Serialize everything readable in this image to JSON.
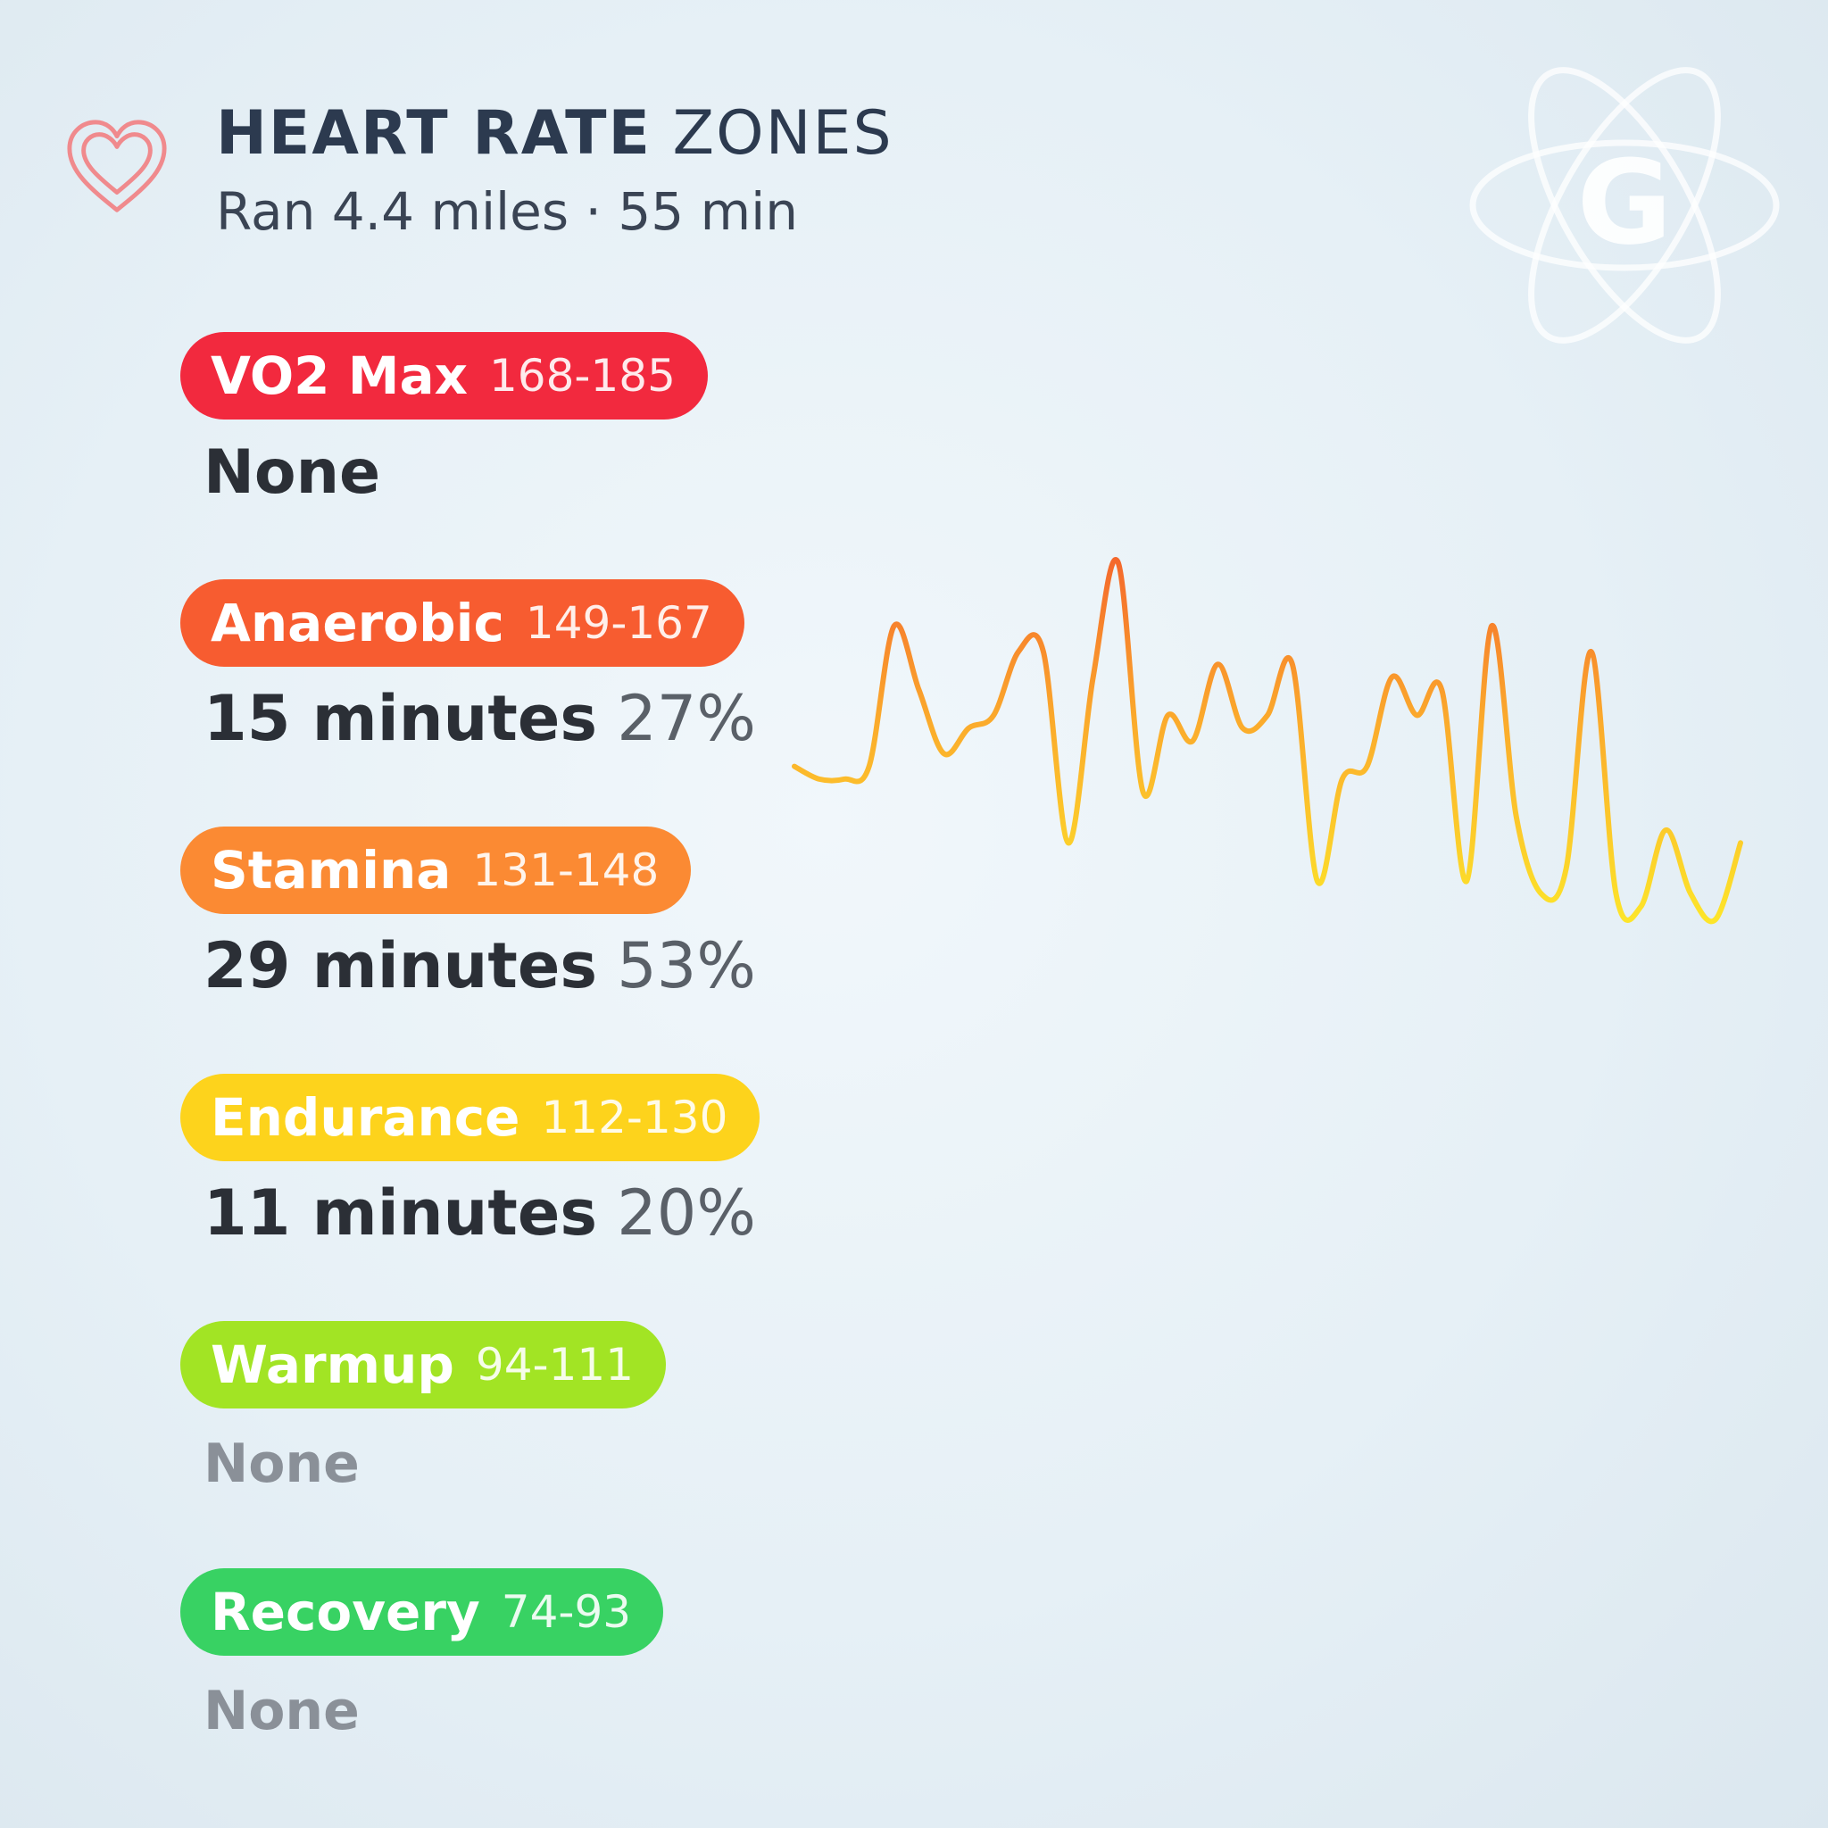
{
  "header": {
    "title_bold": "HEART RATE",
    "title_light": "ZONES",
    "subtitle": "Ran 4.4 miles · 55 min",
    "icon": "heart-icon",
    "logo_letter": "G"
  },
  "colors": {
    "vo2": "#f2293e",
    "anaerobic": "#f75c30",
    "stamina": "#fb8a33",
    "endurance": "#fdd31c",
    "warmup": "#a2e424",
    "recovery": "#38d263",
    "chart_top": "#f4682c",
    "chart_bottom": "#fde52a"
  },
  "zones": [
    {
      "name": "VO2 Max",
      "range": "168-185",
      "minutes": "",
      "percent": "",
      "none": "None"
    },
    {
      "name": "Anaerobic",
      "range": "149-167",
      "minutes": "15 minutes",
      "percent": "27%",
      "none": ""
    },
    {
      "name": "Stamina",
      "range": "131-148",
      "minutes": "29 minutes",
      "percent": "53%",
      "none": ""
    },
    {
      "name": "Endurance",
      "range": "112-130",
      "minutes": "11 minutes",
      "percent": "20%",
      "none": ""
    },
    {
      "name": "Warmup",
      "range": "94-111",
      "minutes": "",
      "percent": "",
      "none": "None"
    },
    {
      "name": "Recovery",
      "range": "74-93",
      "minutes": "",
      "percent": "",
      "none": "None"
    }
  ],
  "chart_data": {
    "type": "line",
    "series": [
      {
        "values": [
          138,
          137,
          137,
          138,
          149,
          144,
          139,
          141,
          142,
          147,
          147,
          132,
          145,
          154,
          136,
          142,
          140,
          146,
          141,
          142,
          146,
          129,
          137,
          138,
          145,
          142,
          144,
          129,
          149,
          134,
          128,
          130,
          147,
          128,
          127,
          133,
          128,
          126,
          132
        ]
      }
    ]
  }
}
